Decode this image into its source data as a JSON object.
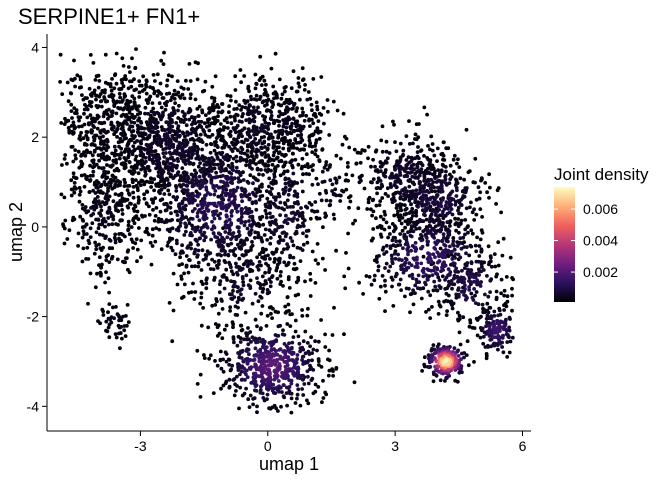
{
  "chart_data": {
    "type": "scatter",
    "title": "SERPINE1+ FN1+",
    "xlabel": "umap 1",
    "ylabel": "umap 2",
    "xlim": [
      -5.2,
      6.2
    ],
    "ylim": [
      -4.55,
      4.3
    ],
    "x_ticks": [
      -3,
      0,
      3,
      6
    ],
    "x_tick_labels": [
      "-3",
      "0",
      "3",
      "6"
    ],
    "y_ticks": [
      -4,
      -2,
      0,
      2,
      4
    ],
    "y_tick_labels": [
      "-4",
      "-2",
      "0",
      "2",
      "4"
    ],
    "grid": false,
    "legend": {
      "title": "Joint density",
      "placement": "right",
      "range": [
        0.0001,
        0.0074
      ],
      "ticks": [
        0.002,
        0.004,
        0.006
      ],
      "tick_labels": [
        "0.002",
        "0.004",
        "0.006"
      ],
      "colormap": [
        "#000004",
        "#2c115f",
        "#721f81",
        "#b73779",
        "#f1605d",
        "#feb078",
        "#fcfdbf"
      ]
    },
    "density_hotspots": [
      {
        "x": 4.2,
        "y": -3.0,
        "value": 0.0074
      },
      {
        "x": 0.1,
        "y": -3.2,
        "value": 0.0022
      },
      {
        "x": 5.4,
        "y": -2.3,
        "value": 0.0016
      },
      {
        "x": 3.8,
        "y": -0.4,
        "value": 0.0014
      },
      {
        "x": -1.0,
        "y": 0.2,
        "value": 0.0012
      },
      {
        "x": -3.5,
        "y": 1.3,
        "value": 0.0006
      }
    ],
    "clusters": [
      {
        "cx": -3.7,
        "cy": 2.1,
        "sx": 0.65,
        "sy": 0.75,
        "n": 550,
        "density": 0.0002
      },
      {
        "cx": -2.3,
        "cy": 1.8,
        "sx": 0.7,
        "sy": 0.8,
        "n": 650,
        "density": 0.0005
      },
      {
        "cx": -3.9,
        "cy": 0.3,
        "sx": 0.45,
        "sy": 0.75,
        "n": 260,
        "density": 0.0003
      },
      {
        "cx": -1.2,
        "cy": 0.5,
        "sx": 0.85,
        "sy": 0.9,
        "n": 800,
        "density": 0.001
      },
      {
        "cx": -0.3,
        "cy": 2.2,
        "sx": 0.6,
        "sy": 0.55,
        "n": 320,
        "density": 0.0004
      },
      {
        "cx": 0.6,
        "cy": 2.4,
        "sx": 0.45,
        "sy": 0.5,
        "n": 170,
        "density": 0.0003
      },
      {
        "cx": 0.4,
        "cy": 0.3,
        "sx": 0.45,
        "sy": 0.9,
        "n": 230,
        "density": 0.0006
      },
      {
        "cx": -0.6,
        "cy": -1.2,
        "sx": 0.6,
        "sy": 0.55,
        "n": 170,
        "density": 0.0006
      },
      {
        "cx": 1.4,
        "cy": 0.9,
        "sx": 0.45,
        "sy": 0.6,
        "n": 90,
        "density": 0.0003
      },
      {
        "cx": 0.1,
        "cy": -3.1,
        "sx": 0.62,
        "sy": 0.48,
        "n": 560,
        "density": 0.002
      },
      {
        "cx": 3.2,
        "cy": 1.1,
        "sx": 0.6,
        "sy": 0.55,
        "n": 330,
        "density": 0.0005
      },
      {
        "cx": 4.0,
        "cy": 0.6,
        "sx": 0.6,
        "sy": 0.5,
        "n": 320,
        "density": 0.0008
      },
      {
        "cx": 3.8,
        "cy": -0.7,
        "sx": 0.75,
        "sy": 0.55,
        "n": 400,
        "density": 0.0013
      },
      {
        "cx": 4.8,
        "cy": -1.3,
        "sx": 0.45,
        "sy": 0.45,
        "n": 140,
        "density": 0.001
      },
      {
        "cx": 5.4,
        "cy": -2.3,
        "sx": 0.25,
        "sy": 0.28,
        "n": 140,
        "density": 0.0015
      },
      {
        "cx": 4.2,
        "cy": -3.0,
        "sx": 0.22,
        "sy": 0.18,
        "n": 210,
        "density": 0.0072
      },
      {
        "cx": -3.6,
        "cy": -2.1,
        "sx": 0.22,
        "sy": 0.22,
        "n": 45,
        "density": 0.0003
      }
    ]
  }
}
